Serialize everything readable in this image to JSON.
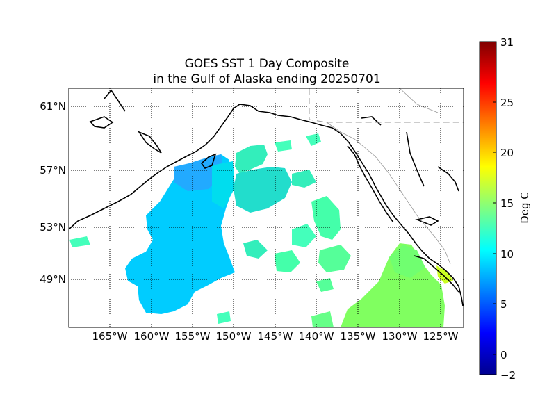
{
  "title": {
    "line1": "GOES SST 1 Day Composite",
    "line2": "in the Gulf of Alaska ending 20250701"
  },
  "map": {
    "lon_labels": [
      "165°W",
      "160°W",
      "155°W",
      "150°W",
      "145°W",
      "140°W",
      "135°W",
      "130°W",
      "125°W"
    ],
    "lat_labels": [
      "61°N",
      "57°N",
      "53°N",
      "49°N"
    ]
  },
  "colorbar": {
    "label": "Deg C",
    "ticks": [
      "31",
      "25",
      "20",
      "15",
      "10",
      "5",
      "0",
      "−2"
    ],
    "range": [
      -2,
      31
    ],
    "colors": [
      "#00008f",
      "#0000ff",
      "#0080ff",
      "#00ffff",
      "#80ff80",
      "#ffff00",
      "#ff8000",
      "#ff0000",
      "#800000"
    ]
  },
  "legend_colors": {
    "cold_water": "#00ccff",
    "mid_water": "#33ffcc",
    "warm_water": "#80ff60"
  }
}
